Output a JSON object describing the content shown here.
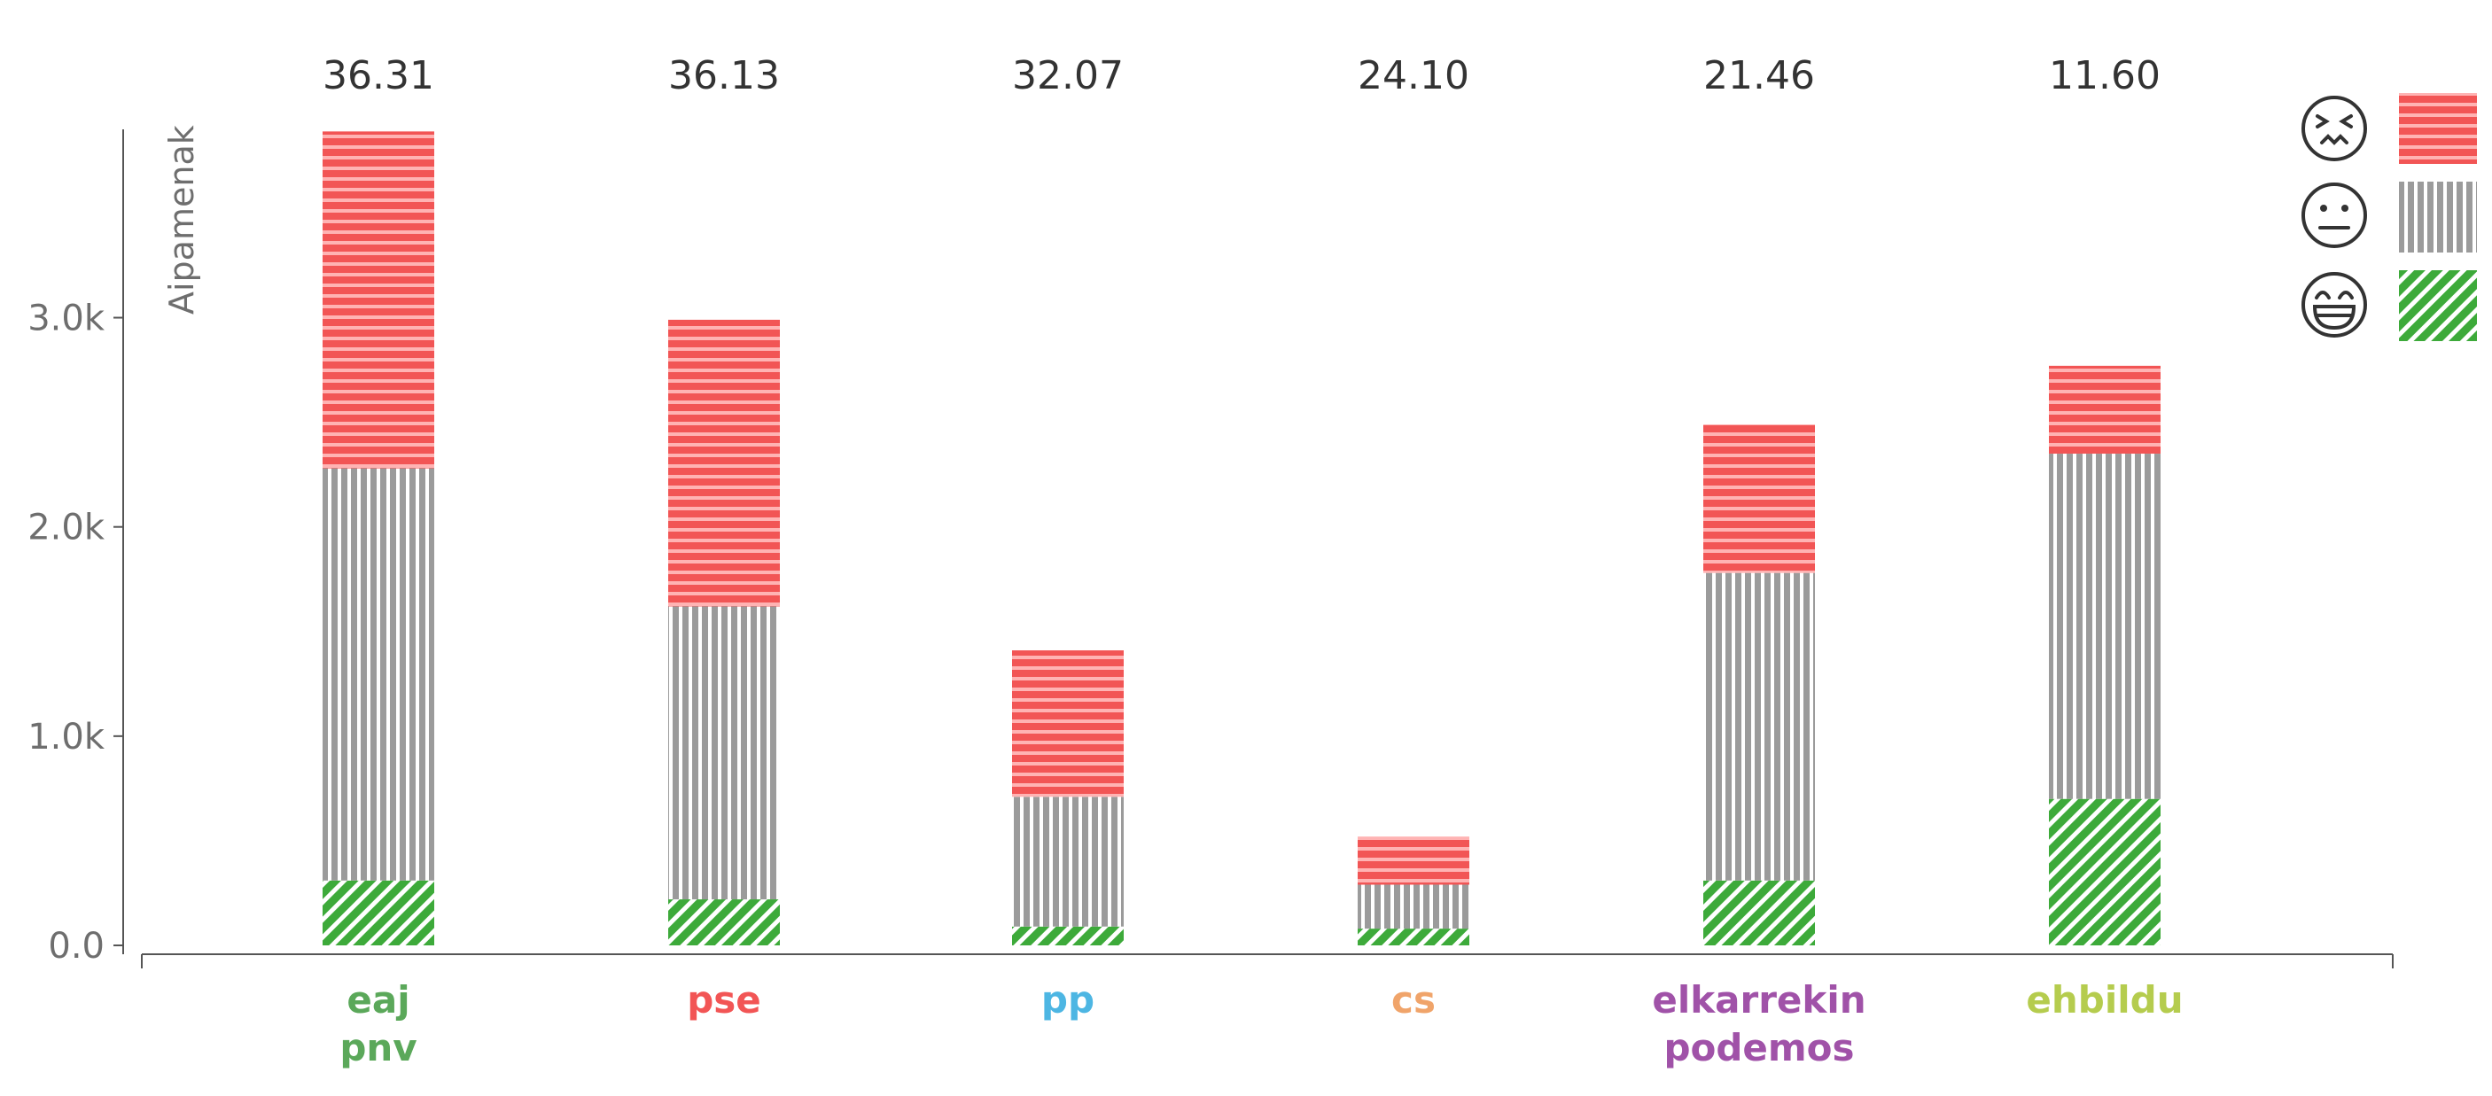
{
  "chart_data": {
    "type": "bar",
    "stacked": true,
    "ylabel": "Aipamenak",
    "xlabel": "",
    "ylim": [
      0,
      3900
    ],
    "yticks": [
      0,
      1000,
      2000,
      3000
    ],
    "ytick_labels": [
      "0.0",
      "1.0k",
      "2.0k",
      "3.0k"
    ],
    "grid": false,
    "legend_position": "top-right",
    "categories": [
      {
        "lines": [
          "eaj",
          "pnv"
        ],
        "color": "#5ba85a"
      },
      {
        "lines": [
          "pse"
        ],
        "color": "#f25555"
      },
      {
        "lines": [
          "pp"
        ],
        "color": "#4db6e3"
      },
      {
        "lines": [
          "cs"
        ],
        "color": "#f0a46a"
      },
      {
        "lines": [
          "elkarrekin",
          "podemos"
        ],
        "color": "#a052a8"
      },
      {
        "lines": [
          "ehbildu"
        ],
        "color": "#b5cc4e"
      }
    ],
    "top_labels": [
      "36.31",
      "36.13",
      "32.07",
      "24.10",
      "21.46",
      "11.60"
    ],
    "series": [
      {
        "key": "positive",
        "icon": "grinning-face-icon",
        "color": "#3daa3a",
        "pattern": "diagonal",
        "values": [
          310,
          220,
          90,
          80,
          310,
          700
        ]
      },
      {
        "key": "neutral",
        "icon": "neutral-face-icon",
        "color": "#9b9b9b",
        "pattern": "vertical",
        "values": [
          1970,
          1400,
          620,
          210,
          1470,
          1650
        ]
      },
      {
        "key": "negative",
        "icon": "confounded-face-icon",
        "color": "#f25555",
        "pattern": "horizontal",
        "values": [
          1610,
          1370,
          700,
          230,
          710,
          420
        ]
      }
    ]
  }
}
